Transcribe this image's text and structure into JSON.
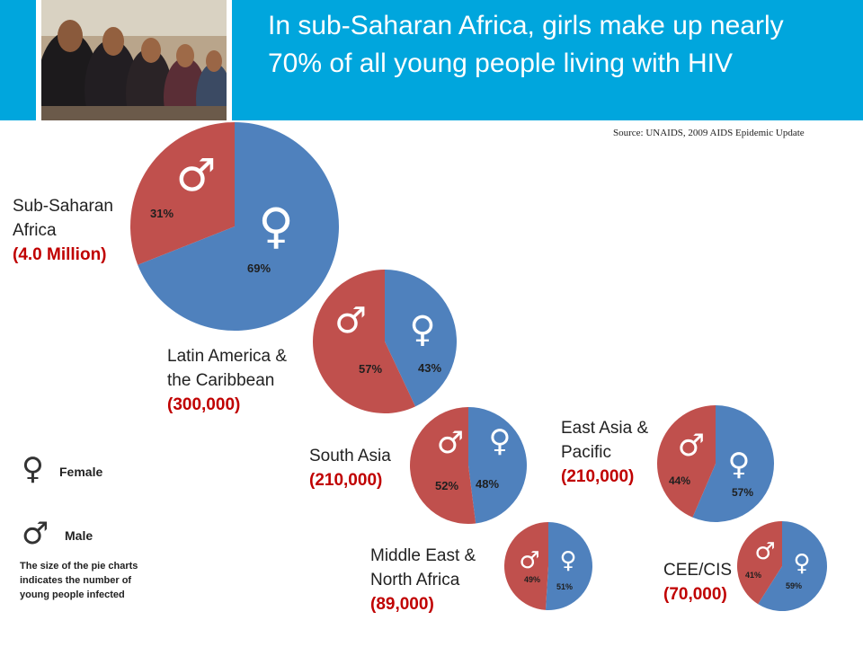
{
  "header": {
    "title": "In sub-Saharan Africa, girls make up nearly 70% of all young people living with HIV"
  },
  "source": "Source: UNAIDS, 2009 AIDS Epidemic Update",
  "colors": {
    "female": "#4f81bd",
    "male": "#c0504d",
    "header": "#00a6dd",
    "count": "#c00000"
  },
  "legend": {
    "female_label": "Female",
    "male_label": "Male",
    "note": "The size of the pie charts indicates the number of young people infected"
  },
  "chart_data": [
    {
      "type": "pie",
      "region": "Sub-Saharan Africa",
      "region_lines": [
        "Sub-Saharan",
        "Africa"
      ],
      "count": "(4.0 Million)",
      "female": 69,
      "male": 31,
      "female_label": "69%",
      "male_label": "31%"
    },
    {
      "type": "pie",
      "region": "Latin America & the Caribbean",
      "region_lines": [
        "Latin America &",
        "the Caribbean"
      ],
      "count": "(300,000)",
      "female": 43,
      "male": 57,
      "female_label": "43%",
      "male_label": "57%"
    },
    {
      "type": "pie",
      "region": "South Asia",
      "region_lines": [
        "South Asia"
      ],
      "count": "(210,000)",
      "female": 48,
      "male": 52,
      "female_label": "48%",
      "male_label": "52%"
    },
    {
      "type": "pie",
      "region": "East Asia & Pacific",
      "region_lines": [
        "East Asia &",
        "Pacific"
      ],
      "count": "(210,000)",
      "female": 57,
      "male": 44,
      "female_label": "57%",
      "male_label": "44%"
    },
    {
      "type": "pie",
      "region": "Middle East & North Africa",
      "region_lines": [
        "Middle East &",
        "North Africa"
      ],
      "count": "(89,000)",
      "female": 51,
      "male": 49,
      "female_label": "51%",
      "male_label": "49%"
    },
    {
      "type": "pie",
      "region": "CEE/CIS",
      "region_lines": [
        "CEE/CIS"
      ],
      "count": "(70,000)",
      "female": 59,
      "male": 41,
      "female_label": "59%",
      "male_label": "41%"
    }
  ]
}
